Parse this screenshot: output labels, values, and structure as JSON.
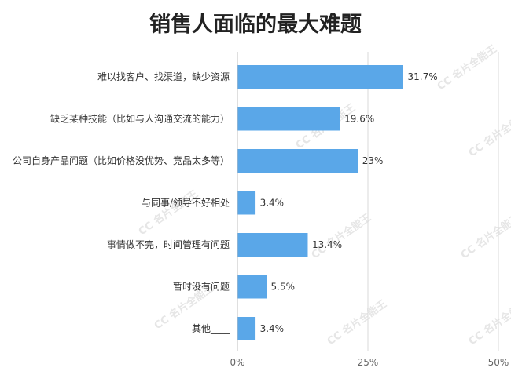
{
  "chart_data": {
    "type": "bar",
    "orientation": "horizontal",
    "title": "销售人面临的最大难题",
    "categories": [
      "难以找客户、找渠道，缺少资源",
      "缺乏某种技能（比如与人沟通交流的能力）",
      "公司自身产品问题（比如价格没优势、竞品太多等）",
      "与同事/领导不好相处",
      "事情做不完，时间管理有问题",
      "暂时没有问题",
      "其他____"
    ],
    "values": [
      31.7,
      19.6,
      23,
      3.4,
      13.4,
      5.5,
      3.4
    ],
    "value_labels": [
      "31.7%",
      "19.6%",
      "23%",
      "3.4%",
      "13.4%",
      "5.5%",
      "3.4%"
    ],
    "xlim": [
      0,
      50
    ],
    "x_ticks": [
      0,
      25,
      50
    ],
    "x_tick_labels": [
      "0%",
      "25%",
      "50%"
    ],
    "grid": true,
    "bar_color": "#5aa7e8",
    "grid_color": "#d9d9d9"
  },
  "watermark": {
    "logo_text": "CC",
    "text": "名片全能王"
  }
}
